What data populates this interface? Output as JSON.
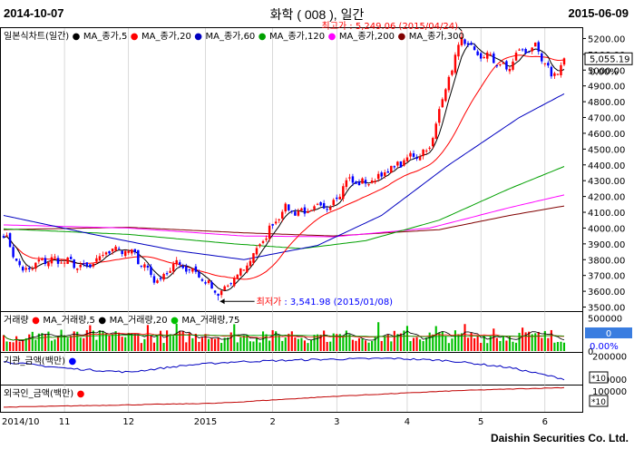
{
  "header": {
    "start_date": "2014-10-07",
    "title": "화학 ( 008 ), 일간",
    "end_date": "2015-06-09"
  },
  "footer": {
    "brand": "Daishin Securities Co. Ltd."
  },
  "colors": {
    "up": "#ff0000",
    "down": "#0000ff",
    "ma5": "#000000",
    "ma20": "#ff0000",
    "ma60": "#0000c0",
    "ma120": "#00a000",
    "ma200": "#ff00ff",
    "ma300": "#800000",
    "bg": "#ffffff",
    "grid": "#c0c0c0"
  },
  "chart_data": [
    {
      "type": "candlestick",
      "title": "일본식차트(일간)",
      "legend": [
        "MA_종가,5",
        "MA_종가,20",
        "MA_종가,60",
        "MA_종가,120",
        "MA_종가,200",
        "MA_종가,300"
      ],
      "y_ticks": [
        "5200.00",
        "5100.00",
        "5000.00",
        "4900.00",
        "4800.00",
        "4700.00",
        "4600.00",
        "4500.00",
        "4400.00",
        "4300.00",
        "4200.00",
        "4100.00",
        "4000.00",
        "3900.00",
        "3800.00",
        "3700.00",
        "3600.00",
        "3500.00"
      ],
      "ylim": [
        3480,
        5260
      ],
      "current_value": "5,055.19",
      "current_change": "0.00%",
      "annotations": {
        "high": {
          "label": "최고가 : 5,249.06 (2015/04/24)",
          "date": "2015-04-24",
          "value": 5249.06
        },
        "low": {
          "label": "최저가 : 3,541.98 (2015/01/08)",
          "date": "2015-01-08",
          "value": 3541.98
        }
      },
      "close_anchors": [
        [
          "2014-10-07",
          3960
        ],
        [
          "2014-10-15",
          3720
        ],
        [
          "2014-10-24",
          3800
        ],
        [
          "2014-11-03",
          3790
        ],
        [
          "2014-11-12",
          3740
        ],
        [
          "2014-11-24",
          3880
        ],
        [
          "2014-12-03",
          3830
        ],
        [
          "2014-12-12",
          3660
        ],
        [
          "2014-12-22",
          3780
        ],
        [
          "2014-12-30",
          3720
        ],
        [
          "2015-01-08",
          3570
        ],
        [
          "2015-01-19",
          3720
        ],
        [
          "2015-01-28",
          3920
        ],
        [
          "2015-02-05",
          4120
        ],
        [
          "2015-02-16",
          4100
        ],
        [
          "2015-02-26",
          4140
        ],
        [
          "2015-03-05",
          4300
        ],
        [
          "2015-03-13",
          4280
        ],
        [
          "2015-03-24",
          4360
        ],
        [
          "2015-04-02",
          4450
        ],
        [
          "2015-04-10",
          4500
        ],
        [
          "2015-04-17",
          4900
        ],
        [
          "2015-04-24",
          5190
        ],
        [
          "2015-04-30",
          5100
        ],
        [
          "2015-05-07",
          5080
        ],
        [
          "2015-05-14",
          5000
        ],
        [
          "2015-05-20",
          5120
        ],
        [
          "2015-05-27",
          5140
        ],
        [
          "2015-06-03",
          4960
        ],
        [
          "2015-06-09",
          5055
        ]
      ],
      "moving_averages": {
        "MA_종가,60": [
          [
            "2014-10-07",
            4080
          ],
          [
            "2014-11-15",
            3960
          ],
          [
            "2014-12-20",
            3860
          ],
          [
            "2015-01-20",
            3800
          ],
          [
            "2015-02-20",
            3890
          ],
          [
            "2015-03-20",
            4080
          ],
          [
            "2015-04-20",
            4400
          ],
          [
            "2015-05-20",
            4700
          ],
          [
            "2015-06-09",
            4850
          ]
        ],
        "MA_종가,120": [
          [
            "2014-10-07",
            3995
          ],
          [
            "2014-12-01",
            3960
          ],
          [
            "2015-01-15",
            3900
          ],
          [
            "2015-02-15",
            3870
          ],
          [
            "2015-03-15",
            3920
          ],
          [
            "2015-04-15",
            4050
          ],
          [
            "2015-05-15",
            4250
          ],
          [
            "2015-06-09",
            4390
          ]
        ],
        "MA_종가,200": [
          [
            "2014-10-07",
            4020
          ],
          [
            "2014-12-01",
            4000
          ],
          [
            "2015-01-20",
            3950
          ],
          [
            "2015-03-01",
            3945
          ],
          [
            "2015-04-10",
            4000
          ],
          [
            "2015-05-15",
            4130
          ],
          [
            "2015-06-09",
            4210
          ]
        ],
        "MA_종가,300": [
          [
            "2014-10-07",
            3990
          ],
          [
            "2014-12-01",
            4005
          ],
          [
            "2015-01-20",
            3970
          ],
          [
            "2015-03-01",
            3950
          ],
          [
            "2015-04-15",
            3990
          ],
          [
            "2015-05-15",
            4080
          ],
          [
            "2015-06-09",
            4140
          ]
        ]
      }
    },
    {
      "type": "bar",
      "title": "거래량",
      "legend": [
        "MA_거래량,5",
        "MA_거래량,20",
        "MA_거래량,75"
      ],
      "y_ticks": [
        "500000",
        "0"
      ],
      "current_value": "0",
      "current_change": "0.00%"
    },
    {
      "type": "line",
      "title": "기관_금액(백만)",
      "y_ticks": [
        "200000",
        "100000"
      ],
      "unit_badge": "*10",
      "anchors": [
        [
          "2014-10-07",
          175000
        ],
        [
          "2014-11-05",
          145000
        ],
        [
          "2014-12-01",
          130000
        ],
        [
          "2014-12-25",
          160000
        ],
        [
          "2015-01-15",
          175000
        ],
        [
          "2015-02-20",
          185000
        ],
        [
          "2015-03-25",
          190000
        ],
        [
          "2015-04-20",
          180000
        ],
        [
          "2015-05-15",
          150000
        ],
        [
          "2015-06-09",
          100000
        ]
      ]
    },
    {
      "type": "line",
      "title": "외국인_금액(백만)",
      "y_ticks": [
        "100000"
      ],
      "unit_badge": "*10",
      "anchors": [
        [
          "2014-10-07",
          0
        ],
        [
          "2015-01-08",
          20000
        ],
        [
          "2015-03-01",
          55000
        ],
        [
          "2015-04-24",
          85000
        ],
        [
          "2015-06-09",
          100000
        ]
      ]
    }
  ],
  "x_axis": {
    "labels": [
      [
        "2014/10",
        "2014-10-07"
      ],
      [
        "11",
        "2014-11-03"
      ],
      [
        "12",
        "2014-12-01"
      ],
      [
        "2015",
        "2015-01-02"
      ],
      [
        "2",
        "2015-02-02"
      ],
      [
        "3",
        "2015-03-02"
      ],
      [
        "4",
        "2015-04-01"
      ],
      [
        "5",
        "2015-05-04"
      ],
      [
        "6",
        "2015-06-01"
      ]
    ]
  }
}
